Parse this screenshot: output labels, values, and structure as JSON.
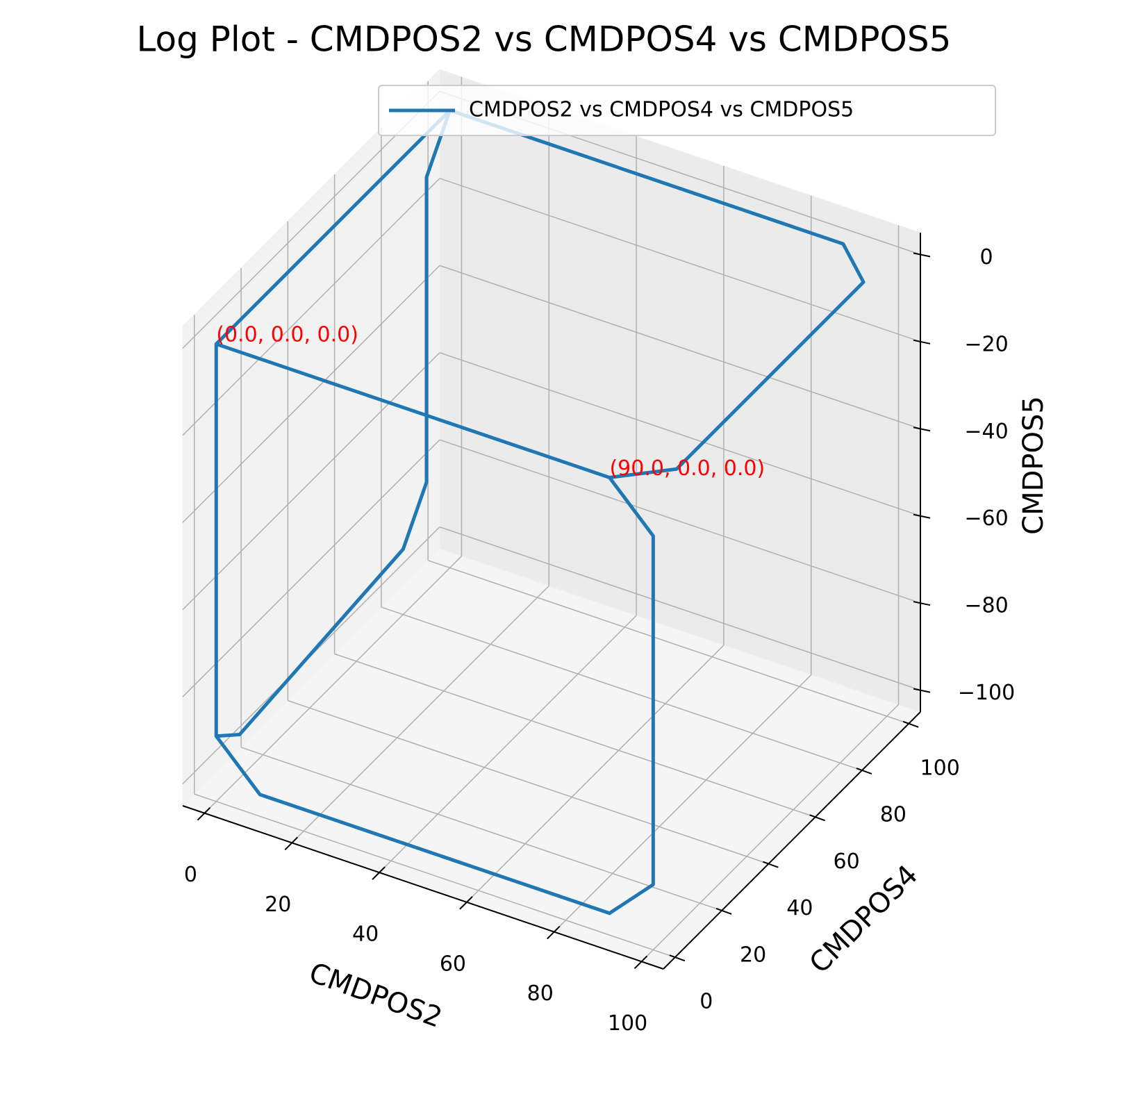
{
  "chart_data": {
    "type": "line3d",
    "title": "Log Plot - CMDPOS2 vs CMDPOS4 vs CMDPOS5",
    "xlabel": "CMDPOS2",
    "ylabel": "CMDPOS4",
    "zlabel": "CMDPOS5",
    "xlim": [
      -5,
      105
    ],
    "ylim": [
      -5,
      105
    ],
    "zlim": [
      -105,
      5
    ],
    "xticks": [
      0,
      20,
      40,
      60,
      80,
      100
    ],
    "yticks": [
      0,
      20,
      40,
      60,
      80,
      100
    ],
    "zticks": [
      {
        "value": -100,
        "label": "−100"
      },
      {
        "value": -80,
        "label": "−80"
      },
      {
        "value": -60,
        "label": "−60"
      },
      {
        "value": -40,
        "label": "−40"
      },
      {
        "value": -20,
        "label": "−20"
      },
      0
    ],
    "grid": true,
    "legend": "upper right",
    "series": [
      {
        "name": "CMDPOS2 vs CMDPOS4 vs CMDPOS5",
        "color": "#1f77b4",
        "x": [
          90,
          0,
          0,
          10,
          90,
          100,
          100,
          90,
          100,
          100,
          90,
          10,
          0,
          0,
          0,
          0,
          0,
          0,
          0,
          0
        ],
        "y": [
          0,
          0,
          0,
          0,
          0,
          0,
          0,
          0,
          10,
          90,
          100,
          100,
          100,
          90,
          90,
          80,
          10,
          0,
          0,
          100
        ],
        "z": [
          0,
          0,
          -90,
          -100,
          -100,
          -90,
          -10,
          0,
          0,
          0,
          0,
          0,
          0,
          -10,
          -80,
          -90,
          -95,
          -90,
          0,
          0
        ]
      }
    ],
    "annotations": [
      {
        "text": "(0.0, 0.0, 0.0)",
        "x": 0,
        "y": 0,
        "z": 0,
        "color": "red"
      },
      {
        "text": "(90.0, 0.0, 0.0)",
        "x": 90,
        "y": 0,
        "z": 0,
        "color": "red"
      }
    ]
  }
}
